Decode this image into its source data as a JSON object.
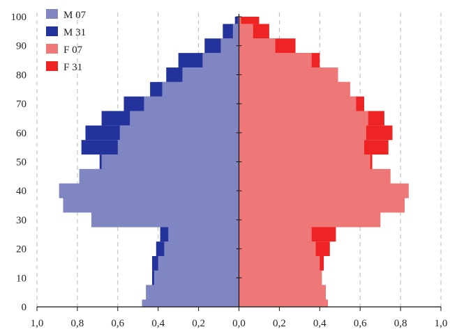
{
  "chart_data": {
    "type": "bar",
    "orientation": "horizontal",
    "xlim": [
      -1.0,
      1.0
    ],
    "ylim": [
      0,
      100
    ],
    "x_ticks": [
      -1.0,
      -0.8,
      -0.6,
      -0.4,
      -0.2,
      0.0,
      0.2,
      0.4,
      0.6,
      0.8,
      1.0
    ],
    "x_tick_labels": [
      "1,0",
      "0,8",
      "0,6",
      "0,4",
      "0,2",
      "0,0",
      "0,2",
      "0,4",
      "0,6",
      "0,8",
      "1,0"
    ],
    "y_ticks": [
      0,
      10,
      20,
      30,
      40,
      50,
      60,
      70,
      80,
      90,
      100
    ],
    "y_tick_labels": [
      "0",
      "10",
      "20",
      "30",
      "40",
      "50",
      "60",
      "70",
      "80",
      "90",
      "100"
    ],
    "grid": "vertical-dashed",
    "legend_position": "top-left",
    "age_step": 5,
    "ages": [
      0,
      5,
      10,
      15,
      20,
      25,
      30,
      35,
      40,
      45,
      50,
      55,
      60,
      65,
      70,
      75,
      80,
      85,
      90,
      95,
      100
    ],
    "series": [
      {
        "name": "M 31",
        "side": "left",
        "color": "#24339b",
        "values": [
          0.48,
          0.46,
          0.43,
          0.43,
          0.41,
          0.39,
          0.73,
          0.87,
          0.89,
          0.79,
          0.69,
          0.78,
          0.76,
          0.68,
          0.57,
          0.44,
          0.36,
          0.3,
          0.17,
          0.08,
          0.02
        ]
      },
      {
        "name": "M 07",
        "side": "left",
        "color": "#7f86c2",
        "values": [
          0.48,
          0.46,
          0.42,
          0.4,
          0.37,
          0.35,
          0.73,
          0.87,
          0.89,
          0.79,
          0.68,
          0.6,
          0.59,
          0.54,
          0.47,
          0.38,
          0.28,
          0.18,
          0.09,
          0.03,
          0.005
        ]
      },
      {
        "name": "F 31",
        "side": "right",
        "color": "#ee2424",
        "values": [
          0.44,
          0.43,
          0.41,
          0.42,
          0.45,
          0.48,
          0.7,
          0.82,
          0.84,
          0.75,
          0.66,
          0.74,
          0.76,
          0.72,
          0.62,
          0.55,
          0.49,
          0.4,
          0.28,
          0.15,
          0.1
        ]
      },
      {
        "name": "F 07",
        "side": "right",
        "color": "#ee7878",
        "values": [
          0.44,
          0.43,
          0.41,
          0.4,
          0.38,
          0.36,
          0.7,
          0.82,
          0.84,
          0.75,
          0.65,
          0.62,
          0.63,
          0.64,
          0.58,
          0.55,
          0.49,
          0.36,
          0.18,
          0.07,
          0.01
        ]
      }
    ],
    "legend": [
      {
        "label": "M 07",
        "color": "#7f86c2"
      },
      {
        "label": "M 31",
        "color": "#24339b"
      },
      {
        "label": "F 07",
        "color": "#ee7878"
      },
      {
        "label": "F 31",
        "color": "#ee2424"
      }
    ]
  }
}
